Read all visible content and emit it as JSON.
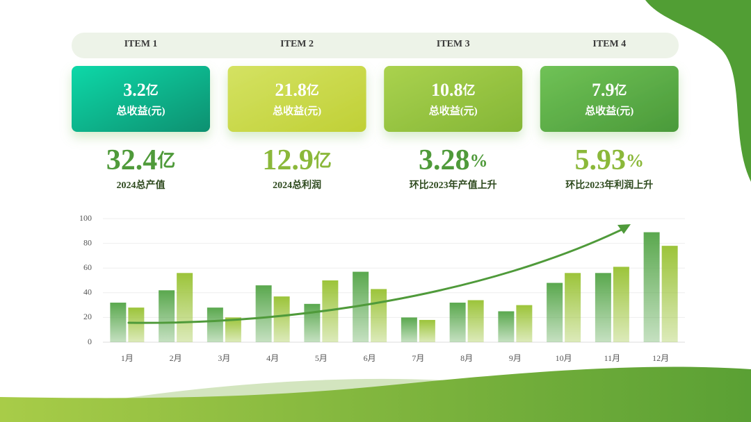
{
  "items": [
    {
      "label": "ITEM 1",
      "card": {
        "value": "3.2",
        "unit": "亿",
        "caption": "总收益(元)"
      },
      "stat": {
        "value": "32.4",
        "unit": "亿",
        "caption": "2024总产值"
      }
    },
    {
      "label": "ITEM 2",
      "card": {
        "value": "21.8",
        "unit": "亿",
        "caption": "总收益(元)"
      },
      "stat": {
        "value": "12.9",
        "unit": "亿",
        "caption": "2024总利润"
      }
    },
    {
      "label": "ITEM 3",
      "card": {
        "value": "10.8",
        "unit": "亿",
        "caption": "总收益(元)"
      },
      "stat": {
        "value": "3.28",
        "unit": "%",
        "caption": "环比2023年产值上升"
      }
    },
    {
      "label": "ITEM 4",
      "card": {
        "value": "7.9",
        "unit": "亿",
        "caption": "总收益(元)"
      },
      "stat": {
        "value": "5.93",
        "unit": "%",
        "caption": "环比2023年利润上升"
      }
    }
  ],
  "chart_data": {
    "type": "bar",
    "categories": [
      "1月",
      "2月",
      "3月",
      "4月",
      "5月",
      "6月",
      "7月",
      "8月",
      "9月",
      "10月",
      "11月",
      "12月"
    ],
    "series": [
      {
        "color": "#5aa84e",
        "values": [
          32,
          42,
          28,
          46,
          31,
          57,
          20,
          32,
          25,
          48,
          56,
          89
        ]
      },
      {
        "color": "#9cc43a",
        "values": [
          28,
          56,
          20,
          37,
          50,
          43,
          18,
          34,
          30,
          56,
          61,
          78
        ]
      }
    ],
    "ylim": [
      0,
      100
    ],
    "yticks": [
      0,
      20,
      40,
      60,
      80,
      100
    ],
    "grid": true
  }
}
